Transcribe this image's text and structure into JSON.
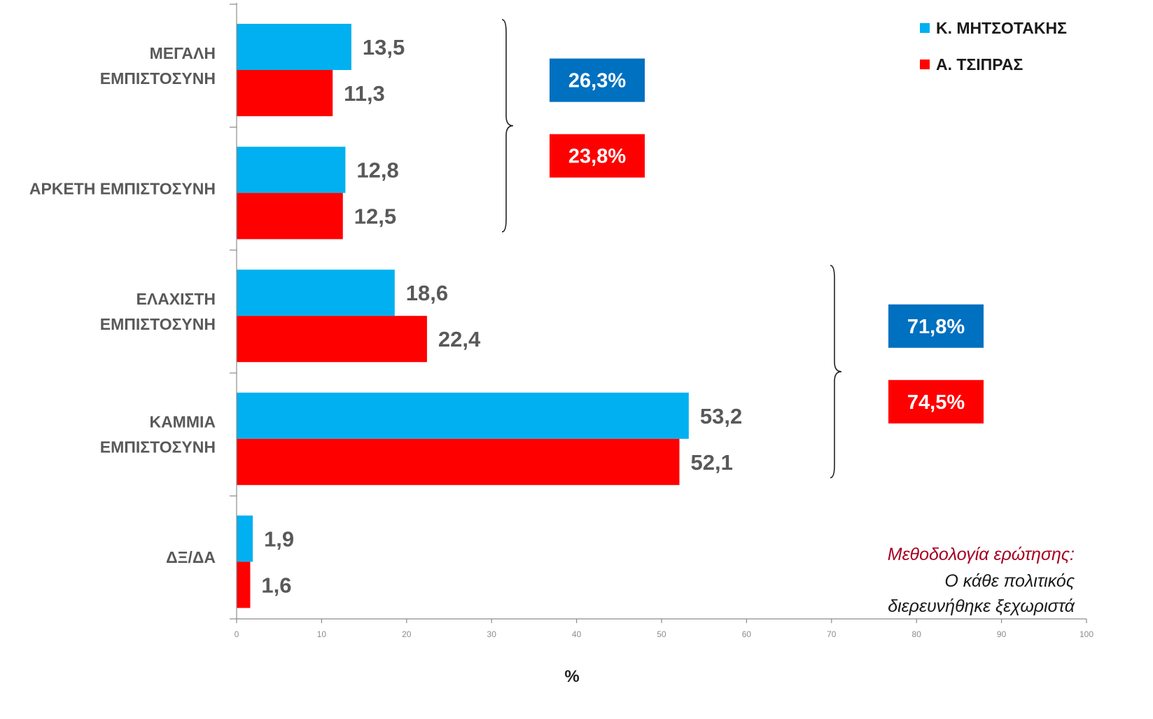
{
  "chart_data": {
    "type": "bar",
    "orientation": "horizontal",
    "categories": [
      [
        "ΜΕΓΑΛΗ",
        "ΕΜΠΙΣΤΟΣΥΝΗ"
      ],
      [
        "ΑΡΚΕΤΗ ΕΜΠΙΣΤΟΣΥΝΗ"
      ],
      [
        "ΕΛΑΧΙΣΤΗ",
        "ΕΜΠΙΣΤΟΣΥΝΗ"
      ],
      [
        "ΚΑΜΜΙΑ",
        "ΕΜΠΙΣΤΟΣΥΝΗ"
      ],
      [
        "ΔΞ/ΔΑ"
      ]
    ],
    "series": [
      {
        "name": "Κ. ΜΗΤΣΟΤΑΚΗΣ",
        "color": "#00B0F0",
        "values": [
          13.5,
          12.8,
          18.6,
          53.2,
          1.9
        ],
        "value_labels": [
          "13,5",
          "12,8",
          "18,6",
          "53,2",
          "1,9"
        ]
      },
      {
        "name": "Α. ΤΣΙΠΡΑΣ",
        "color": "#FF0000",
        "values": [
          11.3,
          12.5,
          22.4,
          52.1,
          1.6
        ],
        "value_labels": [
          "11,3",
          "12,5",
          "22,4",
          "52,1",
          "1,6"
        ]
      }
    ],
    "xlim": [
      0,
      100
    ],
    "xticks": [
      0,
      10,
      20,
      30,
      40,
      50,
      60,
      70,
      80,
      90,
      100
    ],
    "xlabel": "%",
    "legend": "top-right",
    "grid": false,
    "group_totals": [
      {
        "categories": [
          0,
          1
        ],
        "labels": [
          {
            "text": "26,3%",
            "color": "#0070C0"
          },
          {
            "text": "23,8%",
            "color": "#FF0000"
          }
        ]
      },
      {
        "categories": [
          2,
          3
        ],
        "labels": [
          {
            "text": "71,8%",
            "color": "#0070C0"
          },
          {
            "text": "74,5%",
            "color": "#FF0000"
          }
        ]
      }
    ],
    "note": {
      "title": "Μεθοδολογία ερώτησης:",
      "title_color": "#A50021",
      "lines": [
        "Ο κάθε πολιτικός",
        "διερευνήθηκε  ξεχωριστά"
      ]
    }
  }
}
